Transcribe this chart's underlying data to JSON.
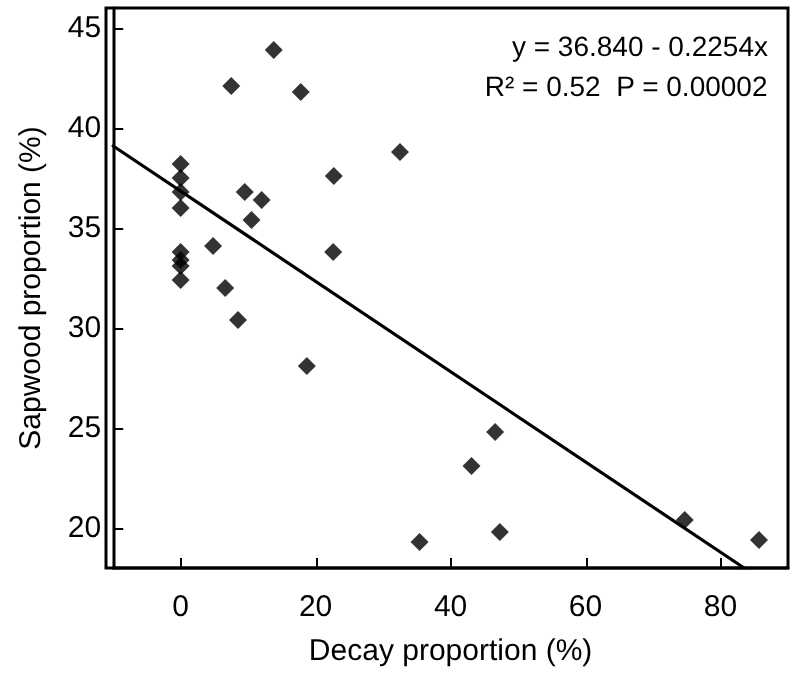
{
  "chart_data": {
    "type": "scatter",
    "xlabel": "Decay proportion (%)",
    "ylabel": "Sapwood proportion (%)",
    "annotations": [
      "y = 36.840 - 0.2254x",
      "R² = 0.52  P = 0.00002"
    ],
    "xlim": [
      -10,
      90
    ],
    "xticks": [
      0,
      20,
      40,
      60,
      80
    ],
    "ylim": [
      18,
      46
    ],
    "yticks": [
      20,
      25,
      30,
      35,
      40,
      45
    ],
    "grid": false,
    "marker": "diamond",
    "series": [
      {
        "color": "#000000",
        "x": [
          0,
          0,
          0,
          0,
          0,
          0,
          0,
          0,
          4.8,
          6.6,
          7.5,
          8.5,
          9.5,
          10.5,
          12,
          13.8,
          17.8,
          18.7,
          22.7,
          22.6,
          32.5,
          35.4,
          43.1,
          46.6,
          47.3,
          74.7,
          85.7
        ],
        "values": [
          38.2,
          37.5,
          36.8,
          36,
          33.8,
          33.4,
          33.1,
          32.4,
          34.1,
          32,
          42.1,
          30.4,
          36.8,
          35.4,
          36.4,
          43.9,
          41.8,
          28.1,
          37.6,
          33.8,
          38.8,
          19.3,
          23.1,
          24.8,
          19.8,
          20.4,
          19.4
        ]
      },
      {
        "type": "line",
        "marker": "none",
        "line_style": "solid",
        "color": "#000000",
        "x": [
          -10,
          83.5
        ],
        "values": [
          39.1,
          18
        ]
      }
    ]
  }
}
